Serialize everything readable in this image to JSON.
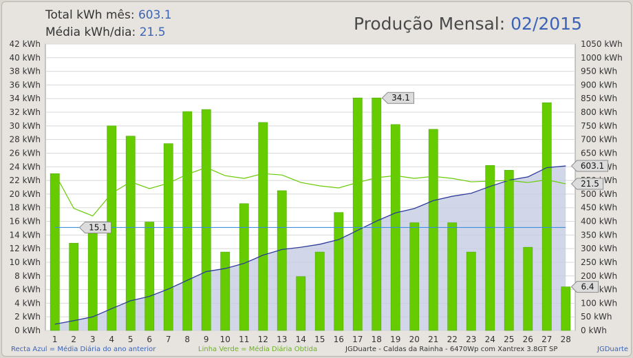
{
  "header": {
    "total_label": "Total kWh mês:",
    "total_value": "603.1",
    "avg_label": "Média kWh/dia:",
    "avg_value": "21.5",
    "title_label": "Produção Mensal:",
    "title_value": "02/2015"
  },
  "footer": {
    "blue_note": "Recta Azul = Média Diária do ano anterior",
    "green_note": "Linha Verde = Média Diária Obtida",
    "system": "JGDuarte  -  Caldas da Rainha  -  6470Wp com Xantrex 3.8GT SP",
    "credit": "JGDuarte"
  },
  "colors": {
    "bar": "#66cc00",
    "bar_edge": "#4fa800",
    "cumulative_line": "#2d3a9a",
    "cumulative_fill": "#c5cde3",
    "avg_line": "#66cc00",
    "prev_year_line": "#3f8fe0",
    "plot_bg": "#ffffff",
    "grid": "#d8d8d8",
    "blue_text": "#3b63b5",
    "green_text": "#6ab31d"
  },
  "chart_data": {
    "type": "bar",
    "title": "Produção Mensal: 02/2015",
    "x": [
      1,
      2,
      3,
      4,
      5,
      6,
      7,
      8,
      9,
      10,
      11,
      12,
      13,
      14,
      15,
      16,
      17,
      18,
      19,
      20,
      21,
      22,
      23,
      24,
      25,
      26,
      27,
      28
    ],
    "left_axis": {
      "min": 0,
      "max": 42,
      "step": 2,
      "unit": "kWh"
    },
    "right_axis": {
      "min": 0,
      "max": 1050,
      "step": 50,
      "unit": "kWh"
    },
    "grid": true,
    "series": [
      {
        "name": "",
        "type": "bar",
        "axis": "left",
        "values": [
          23.0,
          12.8,
          14.6,
          30.0,
          28.5,
          15.9,
          27.4,
          32.1,
          32.4,
          11.5,
          18.6,
          30.5,
          20.5,
          7.9,
          11.5,
          17.3,
          34.1,
          34.1,
          30.2,
          15.8,
          29.5,
          15.8,
          11.5,
          24.2,
          23.5,
          12.2,
          33.4,
          6.4
        ]
      },
      {
        "name": "Linha Verde = Média Diária Obtida",
        "type": "line",
        "axis": "left",
        "values": [
          23.0,
          17.9,
          16.8,
          20.1,
          21.8,
          20.8,
          21.6,
          22.9,
          23.9,
          22.7,
          22.3,
          23.0,
          22.8,
          21.7,
          21.2,
          20.9,
          21.7,
          22.4,
          22.7,
          22.3,
          22.6,
          22.3,
          21.8,
          21.9,
          22.0,
          21.7,
          22.1,
          21.5
        ]
      },
      {
        "name": "Recta Azul = Média Diária do ano anterior",
        "type": "line",
        "axis": "left",
        "values": [
          15.1,
          15.1,
          15.1,
          15.1,
          15.1,
          15.1,
          15.1,
          15.1,
          15.1,
          15.1,
          15.1,
          15.1,
          15.1,
          15.1,
          15.1,
          15.1,
          15.1,
          15.1,
          15.1,
          15.1,
          15.1,
          15.1,
          15.1,
          15.1,
          15.1,
          15.1,
          15.1,
          15.1
        ]
      },
      {
        "name": "",
        "type": "area",
        "axis": "right",
        "values": [
          23,
          36,
          50,
          80,
          109,
          125,
          152,
          184,
          216,
          227,
          246,
          276,
          297,
          305,
          316,
          333,
          367,
          401,
          431,
          447,
          476,
          492,
          503,
          528,
          551,
          563,
          597,
          603.1
        ]
      }
    ],
    "callouts": [
      {
        "label": "15.1",
        "series": 2,
        "index": 1
      },
      {
        "label": "34.1",
        "series": 0,
        "index": 17
      },
      {
        "label": "603.1",
        "series": 3,
        "index": 27
      },
      {
        "label": "21.5",
        "series": 1,
        "index": 27
      },
      {
        "label": "6.4",
        "series": 0,
        "index": 27
      }
    ]
  }
}
